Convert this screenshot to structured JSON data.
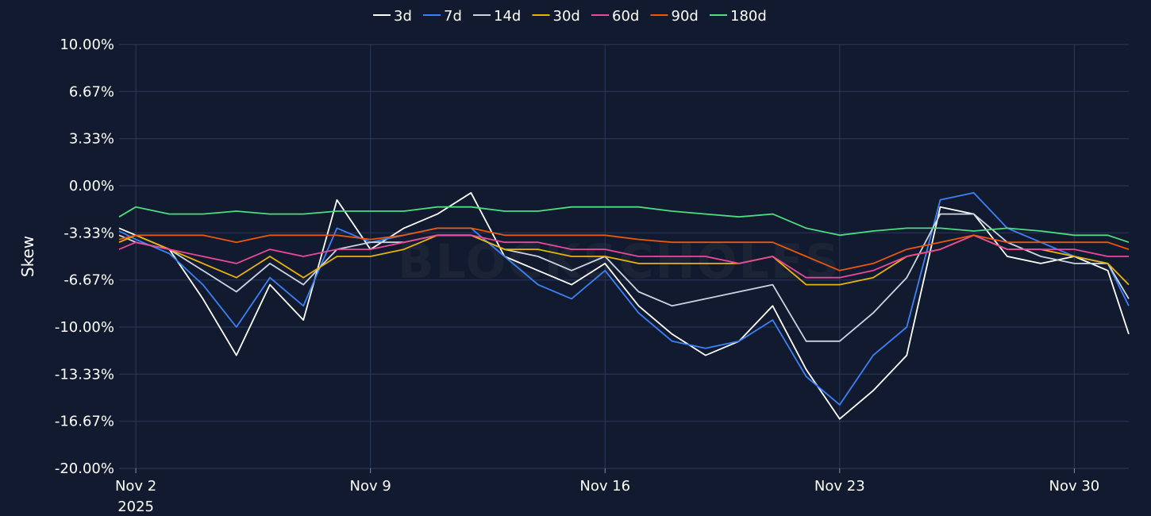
{
  "chart_data": {
    "type": "line",
    "ylabel": "Skew",
    "ylim": [
      -20,
      10
    ],
    "y_ticks": [
      10,
      6.67,
      3.33,
      0,
      -3.33,
      -6.67,
      -10,
      -13.33,
      -16.67,
      -20
    ],
    "y_tick_labels": [
      "10.00%",
      "6.67%",
      "3.33%",
      "0.00%",
      "-3.33%",
      "-6.67%",
      "-10.00%",
      "-13.33%",
      "-16.67%",
      "-20.00%"
    ],
    "xlim": [
      "2025-11-01T12:00",
      "2025-12-01T15:00"
    ],
    "x_ticks": [
      "2025-11-02",
      "2025-11-09",
      "2025-11-16",
      "2025-11-23",
      "2025-11-30"
    ],
    "x_tick_labels": [
      "Nov 2",
      "Nov 9",
      "Nov 16",
      "Nov 23",
      "Nov 30"
    ],
    "x_tick_sublabel": "2025",
    "grid": true,
    "legend_position": "top-center",
    "watermark": "BLOCKSCHOLES",
    "x": [
      "2025-11-01T12:00",
      "2025-11-02T00:00",
      "2025-11-03T00:00",
      "2025-11-04T00:00",
      "2025-11-05T00:00",
      "2025-11-06T00:00",
      "2025-11-07T00:00",
      "2025-11-08T00:00",
      "2025-11-09T00:00",
      "2025-11-10T00:00",
      "2025-11-11T00:00",
      "2025-11-12T00:00",
      "2025-11-13T00:00",
      "2025-11-14T00:00",
      "2025-11-15T00:00",
      "2025-11-16T00:00",
      "2025-11-17T00:00",
      "2025-11-18T00:00",
      "2025-11-19T00:00",
      "2025-11-20T00:00",
      "2025-11-21T00:00",
      "2025-11-22T00:00",
      "2025-11-23T00:00",
      "2025-11-24T00:00",
      "2025-11-25T00:00",
      "2025-11-26T00:00",
      "2025-11-27T00:00",
      "2025-11-28T00:00",
      "2025-11-29T00:00",
      "2025-11-30T00:00",
      "2025-12-01T00:00",
      "2025-12-01T15:00"
    ],
    "series": [
      {
        "name": "3d",
        "color": "#ffffff",
        "values": [
          -3.0,
          -3.5,
          -4.5,
          -8.0,
          -12.0,
          -7.0,
          -9.5,
          -1.0,
          -4.5,
          -3.0,
          -2.0,
          -0.5,
          -5.0,
          -6.0,
          -7.0,
          -5.5,
          -8.5,
          -10.5,
          -12.0,
          -11.0,
          -8.5,
          -13.0,
          -16.5,
          -14.5,
          -12.0,
          -1.5,
          -2.0,
          -5.0,
          -5.5,
          -5.0,
          -6.0,
          -10.5
        ]
      },
      {
        "name": "7d",
        "color": "#3b82f6",
        "values": [
          -3.2,
          -3.8,
          -4.8,
          -7.0,
          -10.0,
          -6.5,
          -8.5,
          -3.0,
          -4.0,
          -3.5,
          -3.0,
          -3.0,
          -5.0,
          -7.0,
          -8.0,
          -6.0,
          -9.0,
          -11.0,
          -11.5,
          -11.0,
          -9.5,
          -13.5,
          -15.5,
          -12.0,
          -10.0,
          -1.0,
          -0.5,
          -3.0,
          -4.0,
          -5.0,
          -5.5,
          -8.5
        ]
      },
      {
        "name": "14d",
        "color": "#cbd5e1",
        "values": [
          -3.5,
          -4.0,
          -4.5,
          -6.0,
          -7.5,
          -5.5,
          -7.0,
          -4.5,
          -4.0,
          -4.0,
          -3.5,
          -3.5,
          -4.5,
          -5.0,
          -6.0,
          -5.0,
          -7.5,
          -8.5,
          -8.0,
          -7.5,
          -7.0,
          -11.0,
          -11.0,
          -9.0,
          -6.5,
          -2.0,
          -2.0,
          -4.0,
          -5.0,
          -5.5,
          -5.5,
          -8.0
        ]
      },
      {
        "name": "30d",
        "color": "#eab308",
        "values": [
          -4.0,
          -3.5,
          -4.5,
          -5.5,
          -6.5,
          -5.0,
          -6.5,
          -5.0,
          -5.0,
          -4.5,
          -3.5,
          -3.5,
          -4.5,
          -4.5,
          -5.0,
          -5.0,
          -5.5,
          -5.5,
          -5.5,
          -5.5,
          -5.0,
          -7.0,
          -7.0,
          -6.5,
          -5.0,
          -4.5,
          -3.5,
          -4.5,
          -4.5,
          -5.0,
          -5.5,
          -7.0
        ]
      },
      {
        "name": "60d",
        "color": "#ec4899",
        "values": [
          -4.5,
          -4.0,
          -4.5,
          -5.0,
          -5.5,
          -4.5,
          -5.0,
          -4.5,
          -4.5,
          -4.0,
          -3.5,
          -3.5,
          -4.0,
          -4.0,
          -4.5,
          -4.5,
          -5.0,
          -5.0,
          -5.0,
          -5.5,
          -5.0,
          -6.5,
          -6.5,
          -6.0,
          -5.0,
          -4.5,
          -3.5,
          -4.5,
          -4.5,
          -4.5,
          -5.0,
          -5.0
        ]
      },
      {
        "name": "90d",
        "color": "#ea580c",
        "values": [
          -3.8,
          -3.5,
          -3.5,
          -3.5,
          -4.0,
          -3.5,
          -3.5,
          -3.5,
          -3.8,
          -3.5,
          -3.0,
          -3.0,
          -3.5,
          -3.5,
          -3.5,
          -3.5,
          -3.8,
          -4.0,
          -4.0,
          -4.0,
          -4.0,
          -5.0,
          -6.0,
          -5.5,
          -4.5,
          -4.0,
          -3.5,
          -4.0,
          -4.0,
          -4.0,
          -4.0,
          -4.5
        ]
      },
      {
        "name": "180d",
        "color": "#4ade80",
        "values": [
          -2.2,
          -1.5,
          -2.0,
          -2.0,
          -1.8,
          -2.0,
          -2.0,
          -1.8,
          -1.8,
          -1.8,
          -1.5,
          -1.5,
          -1.8,
          -1.8,
          -1.5,
          -1.5,
          -1.5,
          -1.8,
          -2.0,
          -2.2,
          -2.0,
          -3.0,
          -3.5,
          -3.2,
          -3.0,
          -3.0,
          -3.2,
          -3.0,
          -3.2,
          -3.5,
          -3.5,
          -4.0
        ]
      }
    ]
  }
}
